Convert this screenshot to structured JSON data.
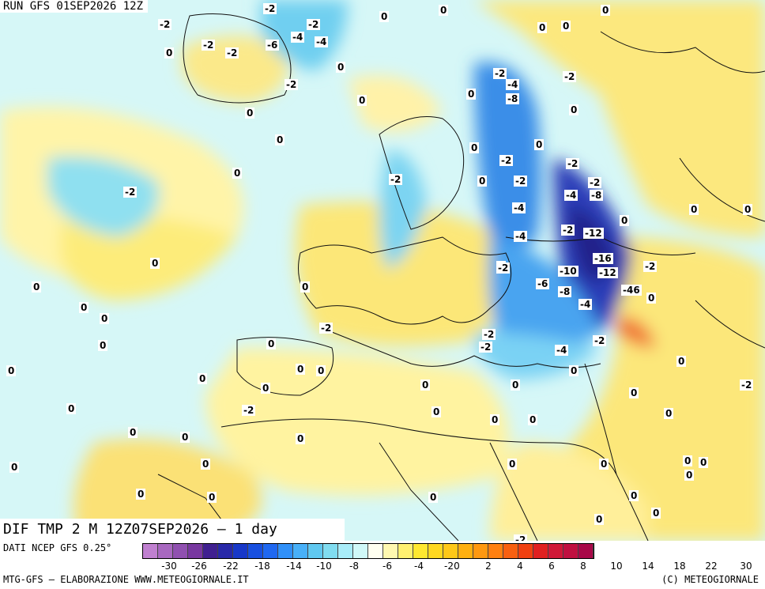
{
  "run_title": "RUN GFS 01SEP2026 12Z",
  "product_title": "DIF TMP 2 M 12Z07SEP2026 – 1 day",
  "legend": {
    "source": "DATI NCEP GFS 0.25°",
    "footer_left": "MTG-GFS – ELABORAZIONE WWW.METEOGIORNALE.IT",
    "footer_right": "(C) METEOGIORNALE",
    "tick_labels": [
      "-30",
      "-26",
      "-22",
      "-18",
      "-14",
      "-10",
      "-8",
      "-6",
      "-4",
      "-2",
      "0",
      "2",
      "4",
      "6",
      "8",
      "10",
      "14",
      "18",
      "22",
      "30"
    ],
    "colors": [
      "#c080d0",
      "#a868c0",
      "#9050b0",
      "#7838a0",
      "#402090",
      "#2828a8",
      "#1838c8",
      "#1850e0",
      "#2068f0",
      "#3090f8",
      "#48b0f8",
      "#60c8f0",
      "#80dcf0",
      "#a8ecf8",
      "#d0f8f8",
      "#fffff0",
      "#fff8b0",
      "#fff070",
      "#ffe830",
      "#ffd820",
      "#ffc818",
      "#ffb010",
      "#ff9810",
      "#ff8010",
      "#f86010",
      "#f04010",
      "#e02020",
      "#d01838",
      "#c01040",
      "#a80848"
    ]
  },
  "map_values": [
    {
      "v": "-2"
    },
    {
      "v": "-2"
    },
    {
      "v": "-2"
    },
    {
      "v": "0"
    },
    {
      "v": "0"
    },
    {
      "v": "0"
    },
    {
      "v": "-2"
    },
    {
      "v": "-2"
    },
    {
      "v": "-4"
    },
    {
      "v": "-6"
    },
    {
      "v": "-4"
    },
    {
      "v": "0"
    },
    {
      "v": "0"
    },
    {
      "v": "-2"
    },
    {
      "v": "0"
    },
    {
      "v": "0"
    },
    {
      "v": "0"
    },
    {
      "v": "0"
    },
    {
      "v": "-2"
    },
    {
      "v": "-4"
    },
    {
      "v": "-8"
    },
    {
      "v": "0"
    },
    {
      "v": "-2"
    },
    {
      "v": "0"
    },
    {
      "v": "0"
    },
    {
      "v": "0"
    },
    {
      "v": "0"
    },
    {
      "v": "-2"
    },
    {
      "v": "0"
    },
    {
      "v": "0"
    },
    {
      "v": "-2"
    },
    {
      "v": "-2"
    },
    {
      "v": "-2"
    },
    {
      "v": "-4"
    },
    {
      "v": "-2"
    },
    {
      "v": "-8"
    },
    {
      "v": "-4"
    },
    {
      "v": "0"
    },
    {
      "v": "0"
    },
    {
      "v": "0"
    },
    {
      "v": "-2"
    },
    {
      "v": "-2"
    },
    {
      "v": "-12"
    },
    {
      "v": "-4"
    },
    {
      "v": "-16"
    },
    {
      "v": "-2"
    },
    {
      "v": "0"
    },
    {
      "v": "-2"
    },
    {
      "v": "-10"
    },
    {
      "v": "-12"
    },
    {
      "v": "-6"
    },
    {
      "v": "-8"
    },
    {
      "v": "-46"
    },
    {
      "v": "0"
    },
    {
      "v": "-4"
    },
    {
      "v": "0"
    },
    {
      "v": "0"
    },
    {
      "v": "-2"
    },
    {
      "v": "0"
    },
    {
      "v": "0"
    },
    {
      "v": "-2"
    },
    {
      "v": "-2"
    },
    {
      "v": "-4"
    },
    {
      "v": "-2"
    },
    {
      "v": "0"
    },
    {
      "v": "0"
    },
    {
      "v": "0"
    },
    {
      "v": "0"
    },
    {
      "v": "0"
    },
    {
      "v": "0"
    },
    {
      "v": "0"
    },
    {
      "v": "0"
    },
    {
      "v": "0"
    },
    {
      "v": "0"
    },
    {
      "v": "0"
    },
    {
      "v": "0"
    },
    {
      "v": "0"
    },
    {
      "v": "-2"
    },
    {
      "v": "0"
    },
    {
      "v": "0"
    },
    {
      "v": "0"
    },
    {
      "v": "0"
    },
    {
      "v": "-2"
    },
    {
      "v": "0"
    },
    {
      "v": "0"
    },
    {
      "v": "0"
    },
    {
      "v": "0"
    },
    {
      "v": "0"
    },
    {
      "v": "0"
    },
    {
      "v": "0"
    },
    {
      "v": "0"
    },
    {
      "v": "0"
    },
    {
      "v": "0"
    },
    {
      "v": "0"
    },
    {
      "v": "0"
    },
    {
      "v": "0"
    },
    {
      "v": "0"
    },
    {
      "v": "0"
    },
    {
      "v": "0"
    },
    {
      "v": "0"
    },
    {
      "v": "-2"
    }
  ]
}
